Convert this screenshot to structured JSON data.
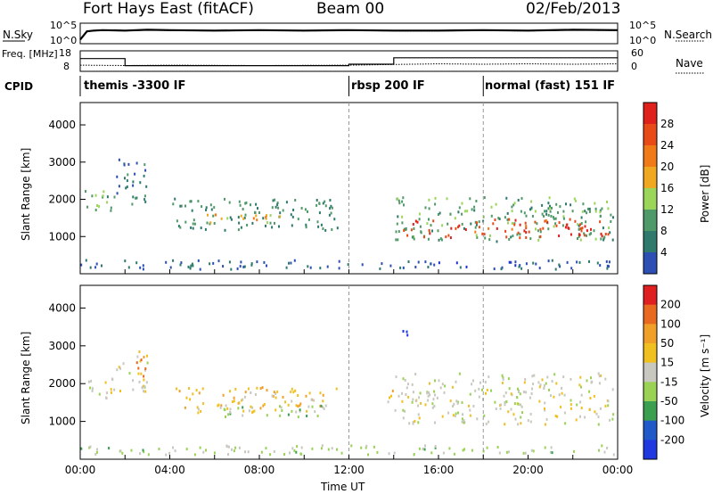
{
  "header": {
    "station": "Fort Hays East (fitACF)",
    "beam": "Beam 00",
    "date": "02/Feb/2013"
  },
  "colors": {
    "power_scale": [
      "#1f2fd8",
      "#2d4fb4",
      "#2f7a6c",
      "#4f9a68",
      "#9bd65a",
      "#f0a820",
      "#f07a18",
      "#e84a18",
      "#e0201a"
    ],
    "velocity_scale": [
      "#2038e0",
      "#205ac8",
      "#3aa050",
      "#9ad255",
      "#c8c8c0",
      "#f0c020",
      "#f0a028",
      "#e86a20",
      "#e02020"
    ],
    "ground_scatter": "#c8c8c0"
  },
  "chart_data": [
    {
      "type": "line",
      "panel": "noise",
      "ylabel_left": "N.Sky",
      "ylabel_right": "N.Search",
      "left_ticks": [
        "10^5",
        "10^0"
      ],
      "right_ticks": [
        "10^5",
        "10^0"
      ],
      "series": [
        {
          "name": "N.Sky",
          "x": [
            0,
            0.3,
            0.6,
            1,
            2,
            3,
            4,
            6,
            8,
            10,
            12,
            14,
            16,
            18,
            20,
            22,
            24
          ],
          "y": [
            1,
            3,
            3.2,
            3.3,
            3.2,
            3.4,
            3.3,
            3.2,
            3.3,
            3.2,
            3.3,
            3.2,
            3.2,
            3.3,
            3.2,
            3.4,
            3.3
          ]
        },
        {
          "name": "N.Search",
          "x": [
            0,
            0.3,
            0.6,
            1,
            2,
            3,
            4,
            6,
            8,
            10,
            12,
            14,
            16,
            18,
            20,
            22,
            24
          ],
          "y": [
            1,
            3.1,
            3.1,
            3.2,
            3.1,
            3.3,
            3.2,
            3.1,
            3.2,
            3.1,
            3.2,
            3.1,
            3.1,
            3.2,
            3.1,
            3.3,
            3.2
          ]
        }
      ]
    },
    {
      "type": "line",
      "panel": "frequency",
      "ylabel_left": "Freq. [MHz]",
      "ylabel_right": "Nave",
      "left_ticks": [
        18,
        8
      ],
      "right_ticks": [
        60,
        0
      ],
      "series": [
        {
          "name": "Freq.",
          "x": [
            0,
            2,
            2,
            12,
            12,
            14,
            14,
            24
          ],
          "y": [
            14.2,
            14.2,
            10.8,
            10.8,
            11.5,
            11.5,
            14.6,
            14.6
          ]
        },
        {
          "name": "Nave",
          "x": [
            0,
            2,
            4,
            8,
            12,
            14,
            16,
            18,
            20,
            22,
            24
          ],
          "y": [
            18,
            17,
            18,
            17,
            18,
            20,
            22,
            21,
            22,
            21,
            22
          ]
        }
      ]
    },
    {
      "type": "table",
      "panel": "cpid",
      "label": "CPID",
      "segments": [
        {
          "start": 0,
          "end": 12,
          "text": "themis -3300 IF"
        },
        {
          "start": 12,
          "end": 18,
          "text": "rbsp 200 IF"
        },
        {
          "start": 18,
          "end": 24,
          "text": "normal (fast) 151 IF"
        }
      ]
    },
    {
      "type": "heatmap",
      "panel": "power",
      "ylabel": "Slant Range [km]",
      "xlabel": "Time UT",
      "xlim": [
        0,
        24
      ],
      "ylim": [
        0,
        4600
      ],
      "yticks": [
        1000,
        2000,
        3000,
        4000
      ],
      "xticks": [
        "00:00",
        "04:00",
        "08:00",
        "12:00",
        "16:00",
        "20:00",
        "00:00"
      ],
      "colorbar_label": "Power [dB]",
      "colorbar_ticks": [
        28,
        24,
        20,
        16,
        12,
        8,
        4
      ],
      "vmin": 0,
      "vmax": 30,
      "features": [
        {
          "t0": 0.2,
          "t1": 1.6,
          "r0": 1650,
          "r1": 2300,
          "value": 12
        },
        {
          "t0": 1.6,
          "t1": 3.0,
          "r0": 1900,
          "r1": 3100,
          "value": 8
        },
        {
          "t0": 4.1,
          "t1": 11.5,
          "r0": 1200,
          "r1": 2050,
          "value": 10
        },
        {
          "t0": 5.0,
          "t1": 9.0,
          "r0": 1400,
          "r1": 1650,
          "value": 18
        },
        {
          "t0": 14.0,
          "t1": 23.8,
          "r0": 900,
          "r1": 2100,
          "value": 12
        },
        {
          "t0": 14.4,
          "t1": 23.6,
          "r0": 1000,
          "r1": 1500,
          "value": 26
        },
        {
          "t0": 0,
          "t1": 24,
          "r0": 150,
          "r1": 400,
          "value": 6
        }
      ]
    },
    {
      "type": "heatmap",
      "panel": "velocity",
      "ylabel": "Slant Range [km]",
      "xlabel": "Time UT",
      "xlim": [
        0,
        24
      ],
      "ylim": [
        0,
        4600
      ],
      "yticks": [
        1000,
        2000,
        3000,
        4000
      ],
      "xticks": [
        "00:00",
        "04:00",
        "08:00",
        "12:00",
        "16:00",
        "20:00",
        "00:00"
      ],
      "colorbar_label": "Velocity [m s⁻¹]",
      "colorbar_ticks": [
        200,
        100,
        50,
        15,
        -15,
        -50,
        -100,
        -200
      ],
      "vmin": -250,
      "vmax": 250,
      "features": [
        {
          "t0": 0.2,
          "t1": 1.6,
          "r0": 1550,
          "r1": 2200,
          "value": 0
        },
        {
          "t0": 1.6,
          "t1": 3.0,
          "r0": 1800,
          "r1": 2900,
          "value": 0
        },
        {
          "t0": 2.3,
          "t1": 2.9,
          "r0": 2200,
          "r1": 2800,
          "value": 180
        },
        {
          "t0": 4.1,
          "t1": 11.5,
          "r0": 1250,
          "r1": 1950,
          "value": 60
        },
        {
          "t0": 6.0,
          "t1": 11.0,
          "r0": 1150,
          "r1": 1450,
          "value": -60
        },
        {
          "t0": 13.6,
          "t1": 14.0,
          "r0": 1300,
          "r1": 1900,
          "value": 60
        },
        {
          "t0": 14.0,
          "t1": 23.8,
          "r0": 950,
          "r1": 2300,
          "value": 0
        },
        {
          "t0": 14.2,
          "t1": 14.6,
          "r0": 3200,
          "r1": 3600,
          "value": -220
        },
        {
          "t0": 0,
          "t1": 24,
          "r0": 150,
          "r1": 400,
          "value": -40
        }
      ]
    }
  ]
}
